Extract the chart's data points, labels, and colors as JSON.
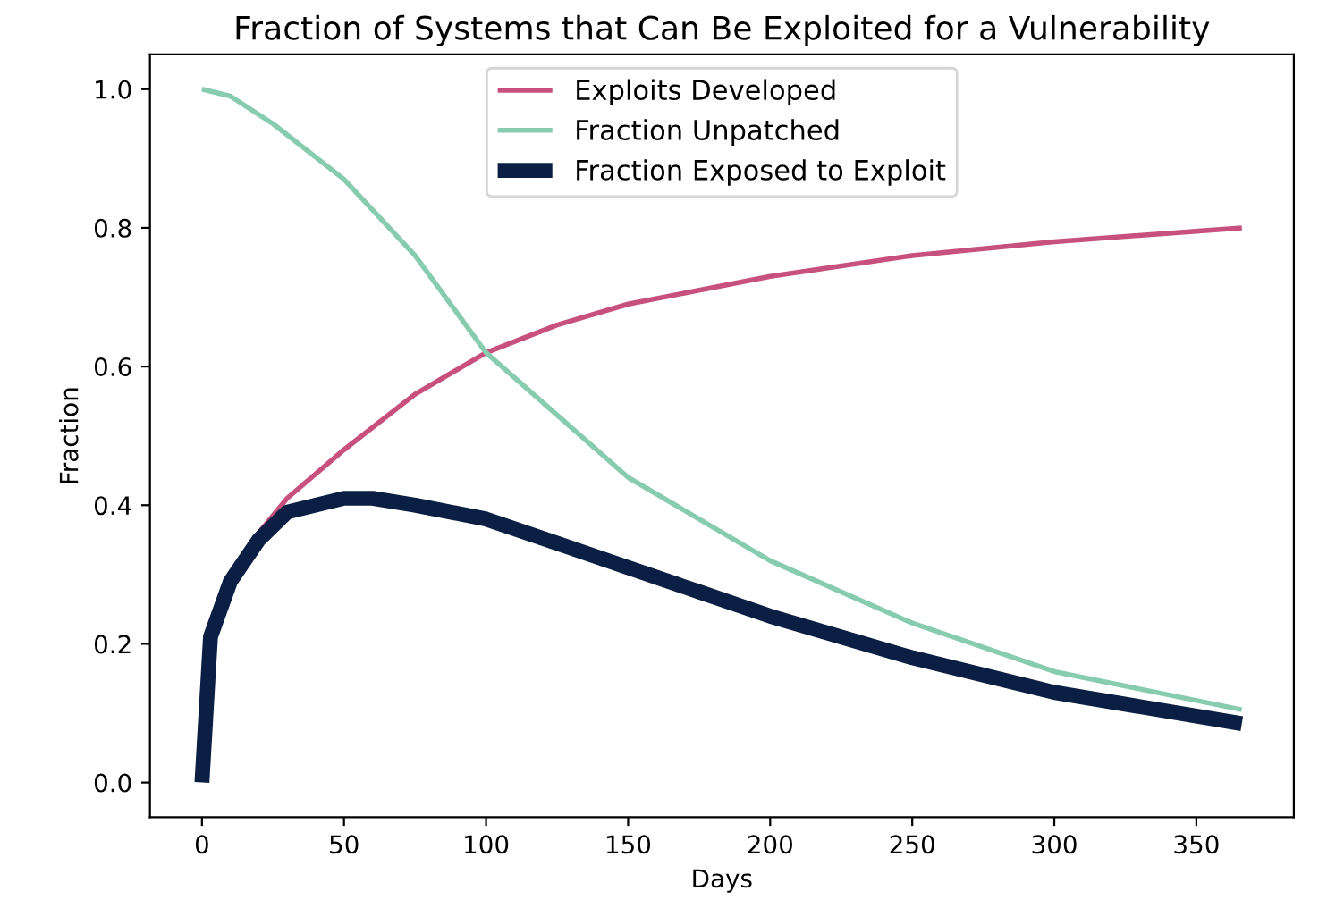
{
  "chart_data": {
    "type": "line",
    "title": "Fraction of Systems that Can Be Exploited for a Vulnerability",
    "xlabel": "Days",
    "ylabel": "Fraction",
    "xlim": [
      -18.3,
      384.3
    ],
    "ylim": [
      -0.05,
      1.05
    ],
    "xticks": [
      0,
      50,
      100,
      150,
      200,
      250,
      300,
      350
    ],
    "yticks": [
      {
        "value": 0,
        "label": "0.0"
      },
      {
        "value": 0.2,
        "label": "0.2"
      },
      {
        "value": 0.4,
        "label": "0.4"
      },
      {
        "value": 0.6,
        "label": "0.6"
      },
      {
        "value": 0.8,
        "label": "0.8"
      },
      {
        "value": 1,
        "label": "1.0"
      }
    ],
    "legend": "top",
    "grid": false,
    "series": [
      {
        "name": "Exploits Developed",
        "color": "#c7507f",
        "x": [
          10,
          20,
          30,
          50,
          75,
          100,
          125,
          150,
          175,
          200,
          250,
          300,
          366
        ],
        "values": [
          0.29,
          0.36,
          0.41,
          0.48,
          0.56,
          0.62,
          0.66,
          0.69,
          0.71,
          0.73,
          0.76,
          0.78,
          0.8
        ]
      },
      {
        "name": "Fraction Unpatched",
        "color": "#88ccb0",
        "x": [
          0,
          10,
          25,
          50,
          75,
          100,
          125,
          150,
          175,
          200,
          250,
          300,
          366
        ],
        "values": [
          1.0,
          0.99,
          0.95,
          0.87,
          0.76,
          0.62,
          0.53,
          0.44,
          0.38,
          0.32,
          0.23,
          0.16,
          0.105
        ]
      },
      {
        "name": "Fraction Exposed to Exploit",
        "color": "#0b1f44",
        "x": [
          0,
          3,
          10,
          20,
          30,
          50,
          60,
          75,
          100,
          125,
          150,
          175,
          200,
          250,
          300,
          366
        ],
        "values": [
          0,
          0.21,
          0.29,
          0.35,
          0.39,
          0.41,
          0.41,
          0.4,
          0.38,
          0.345,
          0.31,
          0.275,
          0.24,
          0.18,
          0.13,
          0.085
        ]
      }
    ]
  }
}
